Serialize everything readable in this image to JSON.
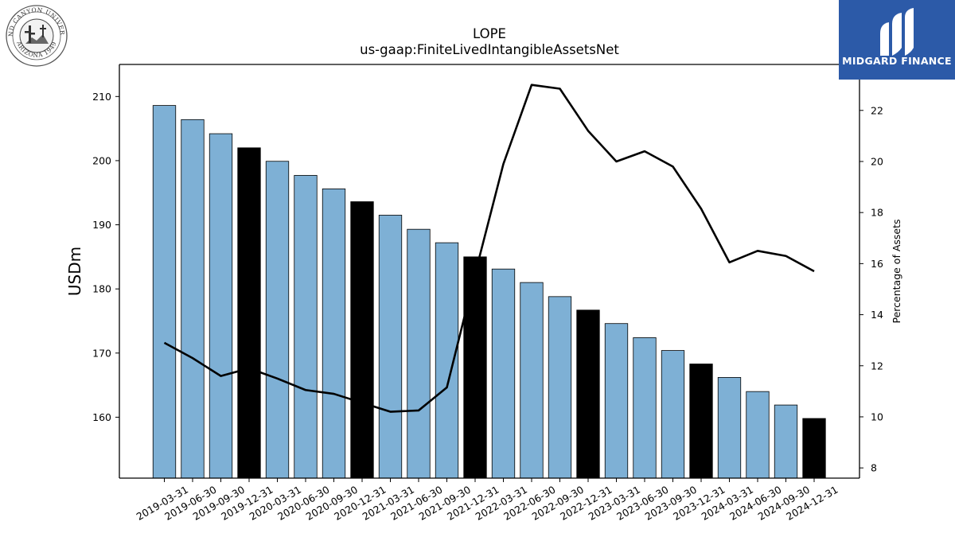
{
  "logo_left": {
    "arc_top": "GRAND CANYON UNIVERSITY",
    "arc_bottom": "ARIZONA 1949",
    "icon": "university-seal-icon"
  },
  "logo_right": {
    "name": "MIDGARD FINANCE",
    "icon": "midgard-logo-icon",
    "background": "#2c5aa8"
  },
  "colors": {
    "bar_quarter": "#7eb0d5",
    "bar_year_end": "#000000",
    "line": "#000000"
  },
  "chart_data": {
    "type": "bar",
    "title": "LOPE",
    "subtitle": "us-gaap:FiniteLivedIntangibleAssetsNet",
    "ylabel": "USDm",
    "ylabel_right": "Percentage of Assets",
    "ylim": [
      150.5,
      215
    ],
    "ylim_right": [
      7.6,
      23.8
    ],
    "yticks": [
      160,
      170,
      180,
      190,
      200,
      210
    ],
    "yticks_right": [
      8,
      10,
      12,
      14,
      16,
      18,
      20,
      22
    ],
    "grid": false,
    "categories": [
      "2019-03-31",
      "2019-06-30",
      "2019-09-30",
      "2019-12-31",
      "2020-03-31",
      "2020-06-30",
      "2020-09-30",
      "2020-12-31",
      "2021-03-31",
      "2021-06-30",
      "2021-09-30",
      "2021-12-31",
      "2022-03-31",
      "2022-06-30",
      "2022-09-30",
      "2022-12-31",
      "2023-03-31",
      "2023-06-30",
      "2023-09-30",
      "2023-12-31",
      "2024-03-31",
      "2024-06-30",
      "2024-09-30",
      "2024-12-31"
    ],
    "series": [
      {
        "kind": "bar",
        "axis": "left",
        "values": [
          208.6,
          206.4,
          204.2,
          202.0,
          199.9,
          197.7,
          195.6,
          193.6,
          191.5,
          189.3,
          187.2,
          185.0,
          183.1,
          181.0,
          178.8,
          176.7,
          174.6,
          172.4,
          170.4,
          168.3,
          166.2,
          164.0,
          161.9,
          159.8
        ],
        "year_end": [
          false,
          false,
          false,
          true,
          false,
          false,
          false,
          true,
          false,
          false,
          false,
          true,
          false,
          false,
          false,
          true,
          false,
          false,
          false,
          true,
          false,
          false,
          false,
          true
        ]
      },
      {
        "kind": "line",
        "axis": "right",
        "values": [
          12.9,
          12.3,
          11.6,
          11.9,
          11.5,
          11.05,
          10.9,
          10.55,
          10.2,
          10.25,
          11.15,
          15.6,
          19.9,
          23.0,
          22.85,
          21.2,
          20.0,
          20.4,
          19.8,
          18.15,
          16.05,
          16.5,
          16.3,
          15.7
        ]
      }
    ]
  }
}
